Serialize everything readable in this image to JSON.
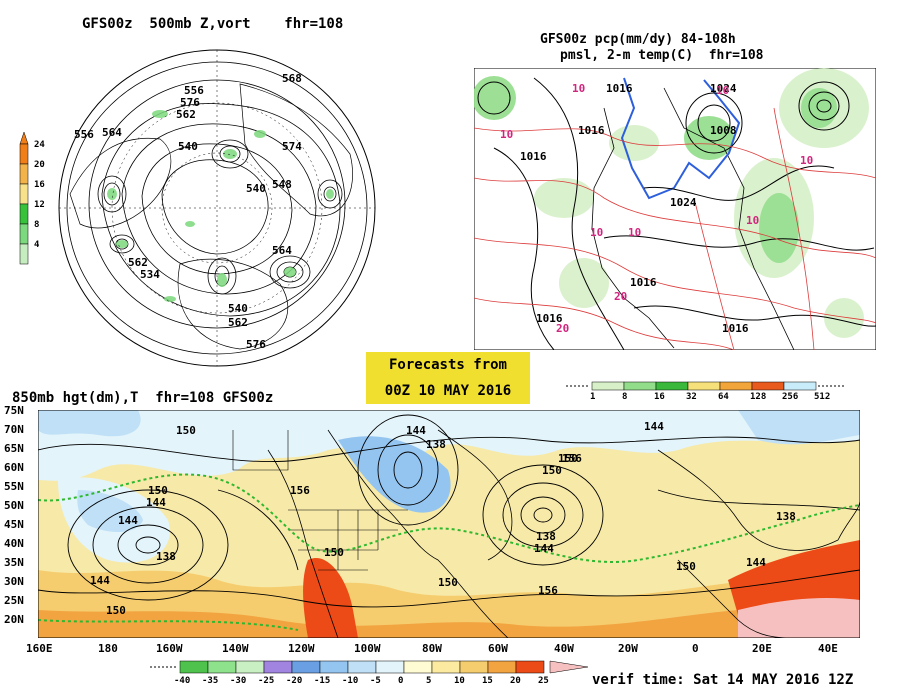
{
  "hemi": {
    "title": "GFS00z  500mb Z,vort    fhr=108",
    "contour_labels": [
      "556",
      "576",
      "562",
      "540",
      "564",
      "574",
      "540",
      "548",
      "562",
      "534",
      "564",
      "540",
      "562",
      "556",
      "576",
      "568"
    ],
    "scale_ticks": [
      "24",
      "20",
      "16",
      "12",
      "8",
      "4"
    ],
    "scale_colors": [
      "#f07f19",
      "#f2b34b",
      "#f7e28b",
      "#38c23b",
      "#7cd97d",
      "#c5edbf"
    ]
  },
  "na": {
    "title_line1": "GFS00z pcp(mm/dy) 84-108h",
    "title_line2": "pmsl, 2-m temp(C)  fhr=108",
    "pressure_labels": [
      "1016",
      "1024",
      "1016",
      "1024",
      "1016",
      "1008",
      "1016",
      "1016",
      "1016"
    ],
    "temp_labels": [
      "10",
      "10",
      "10",
      "10",
      "10",
      "10",
      "10",
      "20",
      "20"
    ],
    "precip_scale": {
      "ticks": [
        "1",
        "8",
        "16",
        "32",
        "64",
        "128",
        "256",
        "512"
      ],
      "colors": [
        "#d7f0c8",
        "#92dd8a",
        "#39b83b",
        "#f6e07a",
        "#f2a53a",
        "#e95b1d",
        "#c8ecf9"
      ]
    }
  },
  "banner": {
    "line1": "Forecasts from",
    "line2": "00Z 10 MAY 2016"
  },
  "main": {
    "title": "850mb hgt(dm),T  fhr=108 GFS00z",
    "lat_labels": [
      "75N",
      "70N",
      "65N",
      "60N",
      "55N",
      "50N",
      "45N",
      "40N",
      "35N",
      "30N",
      "25N",
      "20N"
    ],
    "lon_labels": [
      "160E",
      "180",
      "160W",
      "140W",
      "120W",
      "100W",
      "80W",
      "60W",
      "40W",
      "20W",
      "0",
      "20E",
      "40E"
    ],
    "height_labels": [
      "150",
      "150",
      "144",
      "156",
      "144",
      "138",
      "150",
      "144",
      "156",
      "138",
      "144",
      "138",
      "144",
      "150",
      "150",
      "150",
      "144",
      "138",
      "150",
      "156",
      "150",
      "144"
    ],
    "temp_scale": {
      "ticks": [
        "-40",
        "-35",
        "-30",
        "-25",
        "-20",
        "-15",
        "-10",
        "-5",
        "0",
        "5",
        "10",
        "15",
        "20",
        "25"
      ],
      "colors": [
        "#4ec24c",
        "#8ee28c",
        "#c9f0c3",
        "#a084e0",
        "#6a9fe3",
        "#94c4f0",
        "#bfe0f6",
        "#e3f4fa",
        "#fffbd2",
        "#fbeaa0",
        "#f6cd6e",
        "#f2a441",
        "#ec4a17"
      ]
    },
    "verif": "verif time: Sat 14 MAY 2016 12Z"
  }
}
